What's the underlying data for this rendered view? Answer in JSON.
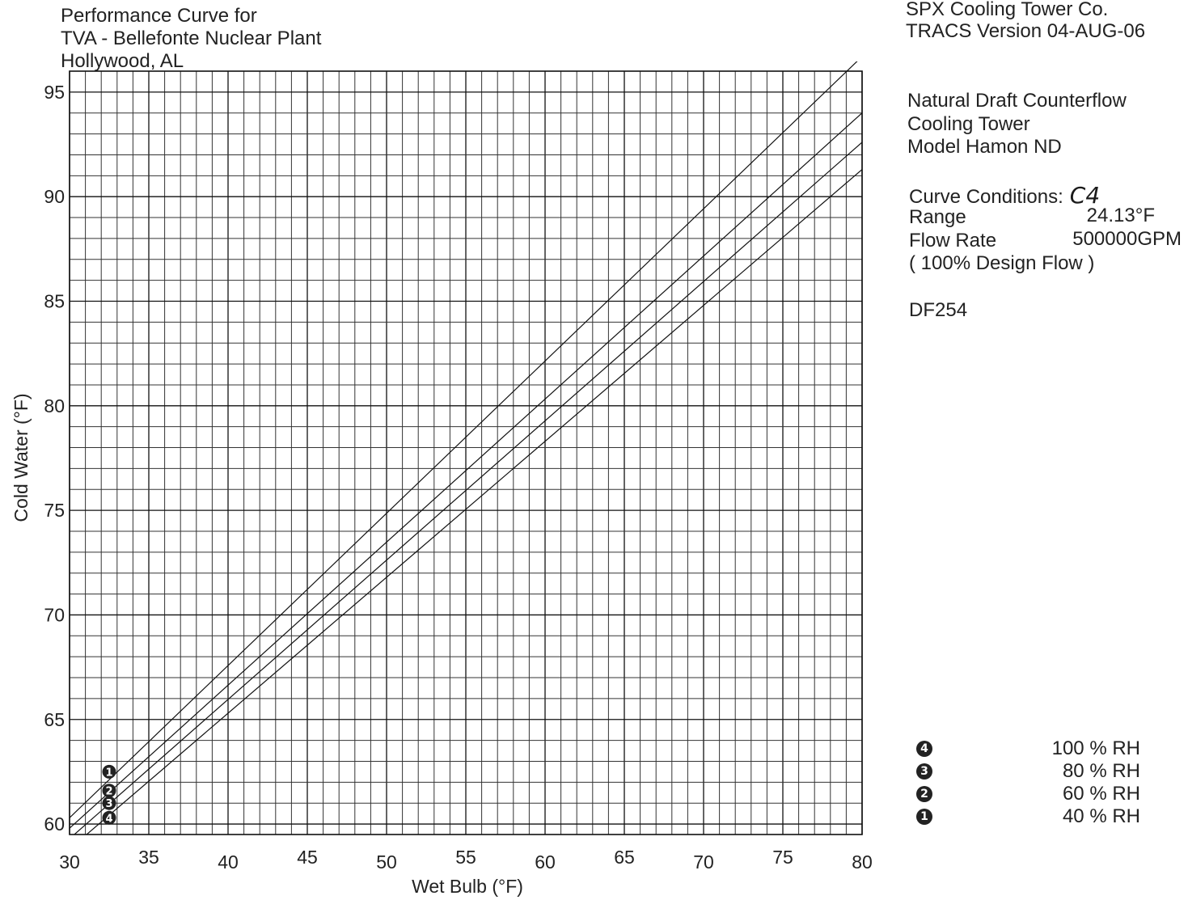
{
  "header": {
    "title_lines": [
      "Performance Curve for",
      "TVA - Bellefonte Nuclear Plant",
      "Hollywood, AL"
    ],
    "vendor_lines": [
      "SPX Cooling Tower Co.",
      "TRACS Version 04-AUG-06"
    ]
  },
  "info": {
    "tower_lines": [
      "Natural Draft Counterflow",
      "Cooling Tower",
      "Model Hamon ND"
    ],
    "curve_conditions_label": "Curve Conditions:",
    "curve_conditions_value": "C4",
    "range_label": "Range",
    "range_value": "24.13°F",
    "flow_label": "Flow Rate",
    "flow_value": "500000GPM",
    "flow_note": "( 100% Design Flow )",
    "doc_id": "DF254"
  },
  "legend": [
    {
      "marker": "4",
      "label": "100 % RH"
    },
    {
      "marker": "3",
      "label": "80 % RH"
    },
    {
      "marker": "2",
      "label": "60 % RH"
    },
    {
      "marker": "1",
      "label": "40 % RH"
    }
  ],
  "chart_data": {
    "type": "line",
    "xlabel": "Wet Bulb (°F)",
    "ylabel": "Cold Water (°F)",
    "xlim": [
      30,
      80
    ],
    "ylim": [
      59.5,
      96
    ],
    "xticks": [
      30,
      35,
      40,
      45,
      50,
      55,
      60,
      65,
      70,
      75,
      80
    ],
    "yticks": [
      60,
      65,
      70,
      75,
      80,
      85,
      90,
      95
    ],
    "grid": true,
    "series": [
      {
        "name": "40 % RH",
        "marker": "1",
        "x": [
          30,
          80
        ],
        "y": [
          60.3,
          96.7
        ]
      },
      {
        "name": "60 % RH",
        "marker": "2",
        "x": [
          30,
          80
        ],
        "y": [
          59.8,
          94.0
        ]
      },
      {
        "name": "80 % RH",
        "marker": "3",
        "x": [
          30,
          80
        ],
        "y": [
          59.3,
          92.6
        ]
      },
      {
        "name": "100 % RH",
        "marker": "4",
        "x": [
          30,
          80
        ],
        "y": [
          58.8,
          91.3
        ]
      }
    ],
    "series_labels_at_x": 32.5,
    "series_labels_y": [
      62.5,
      61.6,
      61.0,
      60.3
    ]
  }
}
